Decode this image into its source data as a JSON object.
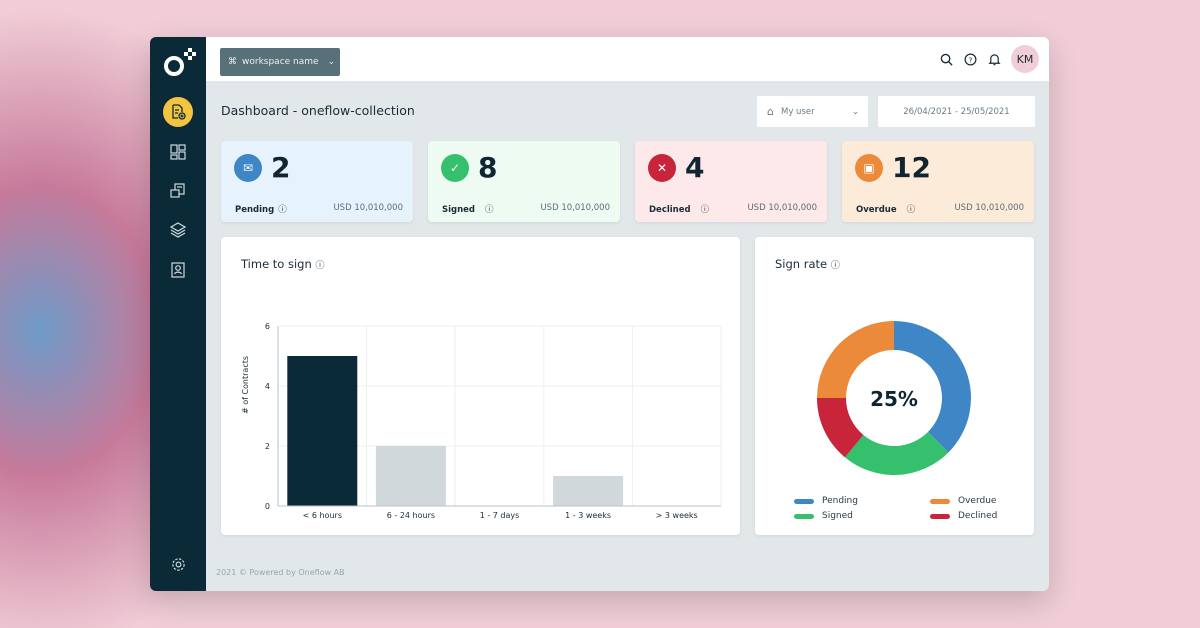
{
  "header": {
    "workspace": "workspace name",
    "avatar": "KM",
    "icons": [
      "search-icon",
      "help-icon",
      "bell-icon"
    ]
  },
  "sidebar": {
    "items": [
      "new-document-icon",
      "dashboard-icon",
      "documents-icon",
      "templates-icon",
      "contacts-icon"
    ],
    "settings": "gear-icon",
    "active_color": "#f3c43f"
  },
  "page": {
    "title": "Dashboard - oneflow-collection",
    "user_filter": "My user",
    "date_range": "26/04/2021 - 25/05/2021",
    "footer": "2021 © Powered by Oneflow AB"
  },
  "cards": [
    {
      "count": "2",
      "label": "Pending",
      "amount": "USD 10,010,000",
      "color": "#3f86c6",
      "bg": "#e6f3fc",
      "icon": "envelope-icon"
    },
    {
      "count": "8",
      "label": "Signed",
      "amount": "USD 10,010,000",
      "color": "#35c06e",
      "bg": "#eefbf2",
      "icon": "check-icon"
    },
    {
      "count": "4",
      "label": "Declined",
      "amount": "USD 10,010,000",
      "color": "#c8243a",
      "bg": "#fde9ea",
      "icon": "x-icon"
    },
    {
      "count": "12",
      "label": "Overdue",
      "amount": "USD 10,010,000",
      "color": "#ea8a3a",
      "bg": "#fdebd9",
      "icon": "calendar-icon"
    }
  ],
  "chart_data": [
    {
      "type": "bar",
      "title": "Time to sign",
      "ylabel": "# of Contracts",
      "xlabel": "",
      "categories": [
        "< 6 hours",
        "6 - 24 hours",
        "1 - 7 days",
        "1 - 3 weeks",
        "> 3 weeks"
      ],
      "values": [
        5,
        2,
        0,
        1,
        0
      ],
      "ylim": [
        0,
        6
      ],
      "yticks": [
        "0",
        "2",
        "4",
        "6"
      ],
      "grid": true,
      "colors": [
        "#0b2a38",
        "#d1d8dc",
        "#d1d8dc",
        "#d1d8dc",
        "#d1d8dc"
      ]
    },
    {
      "type": "pie",
      "title": "Sign rate",
      "center_label": "25%",
      "categories": [
        "Pending",
        "Signed",
        "Declined",
        "Overdue"
      ],
      "values": [
        37.5,
        23.5,
        14,
        25
      ],
      "colors": [
        "#3f86c6",
        "#35c06e",
        "#c8243a",
        "#ea8a3a"
      ],
      "legend": "bottom"
    }
  ]
}
